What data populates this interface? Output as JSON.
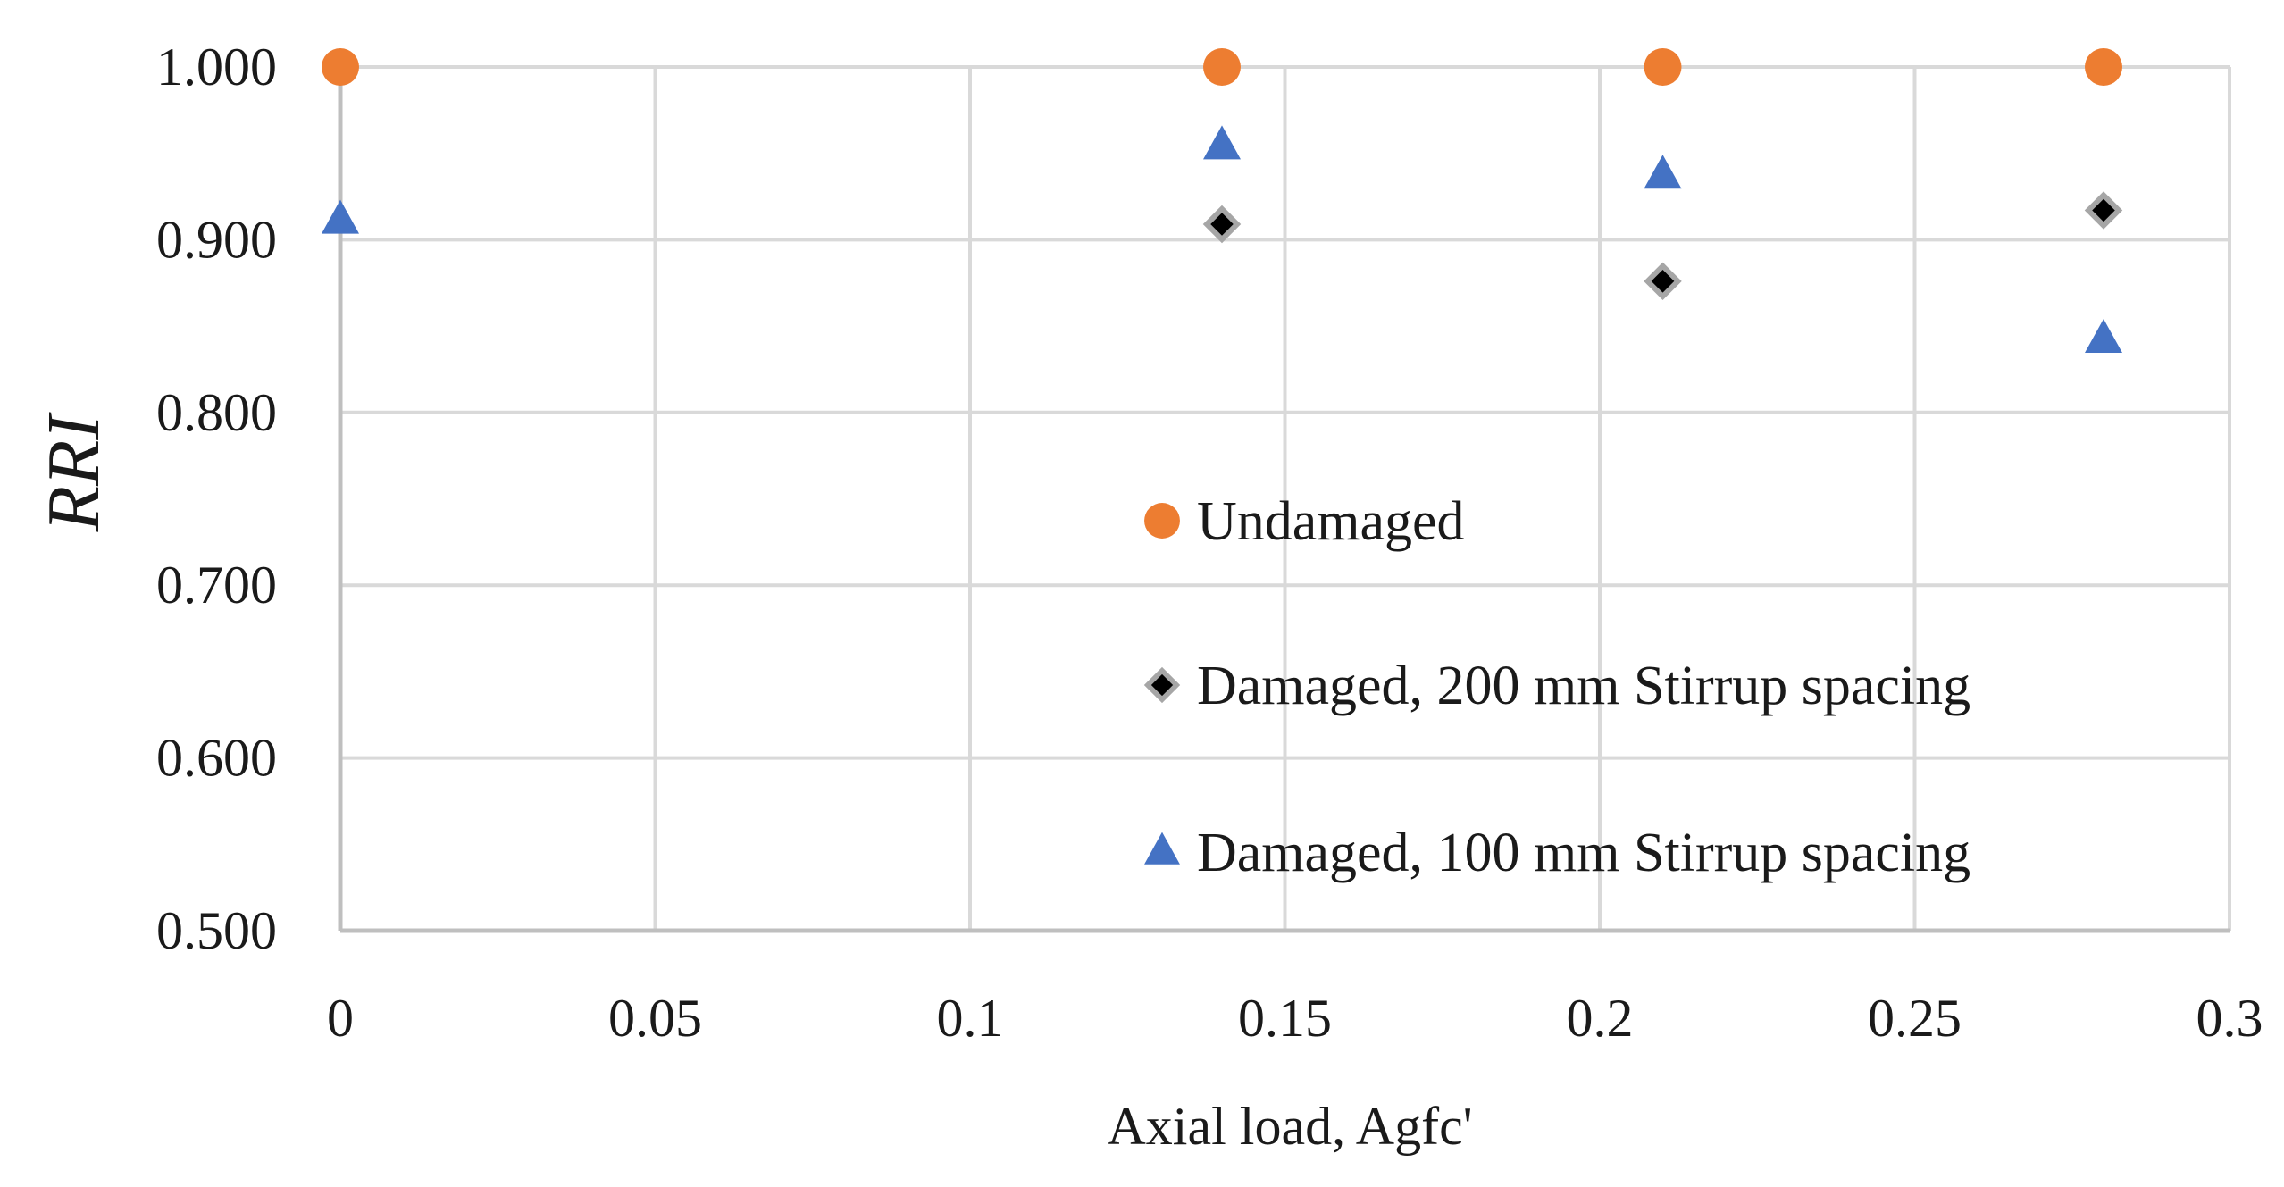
{
  "chart_data": {
    "type": "scatter",
    "title": "",
    "xlabel": "Axial load, Agfc'",
    "ylabel": "RRI",
    "xlim": [
      0,
      0.3
    ],
    "ylim": [
      0.5,
      1.0
    ],
    "x_ticks": [
      0,
      0.05,
      0.1,
      0.15,
      0.2,
      0.25,
      0.3
    ],
    "x_tick_labels": [
      "0",
      "0.05",
      "0.1",
      "0.15",
      "0.2",
      "0.25",
      "0.3"
    ],
    "y_ticks": [
      0.5,
      0.6,
      0.7,
      0.8,
      0.9,
      1.0
    ],
    "y_tick_labels": [
      "0.500",
      "0.600",
      "0.700",
      "0.800",
      "0.900",
      "1.000"
    ],
    "grid": true,
    "legend_position": "center-right",
    "series": [
      {
        "name": "Undamaged",
        "marker": "circle",
        "color": "#ED7D31",
        "points": [
          {
            "x": 0,
            "y": 1.0
          },
          {
            "x": 0.14,
            "y": 1.0
          },
          {
            "x": 0.21,
            "y": 1.0
          },
          {
            "x": 0.28,
            "y": 1.0
          }
        ]
      },
      {
        "name": "Damaged, 200 mm Stirrup spacing",
        "marker": "diamond",
        "color": "#000000",
        "outline": "#A6A6A6",
        "points": [
          {
            "x": 0.14,
            "y": 0.909
          },
          {
            "x": 0.21,
            "y": 0.876
          },
          {
            "x": 0.28,
            "y": 0.917
          }
        ]
      },
      {
        "name": "Damaged, 100 mm Stirrup spacing",
        "marker": "triangle",
        "color": "#4472C4",
        "points": [
          {
            "x": 0,
            "y": 0.911
          },
          {
            "x": 0.14,
            "y": 0.954
          },
          {
            "x": 0.21,
            "y": 0.937
          },
          {
            "x": 0.28,
            "y": 0.842
          }
        ]
      }
    ]
  },
  "colors": {
    "grid": "#D9D9D9",
    "axis": "#BFBFBF"
  }
}
